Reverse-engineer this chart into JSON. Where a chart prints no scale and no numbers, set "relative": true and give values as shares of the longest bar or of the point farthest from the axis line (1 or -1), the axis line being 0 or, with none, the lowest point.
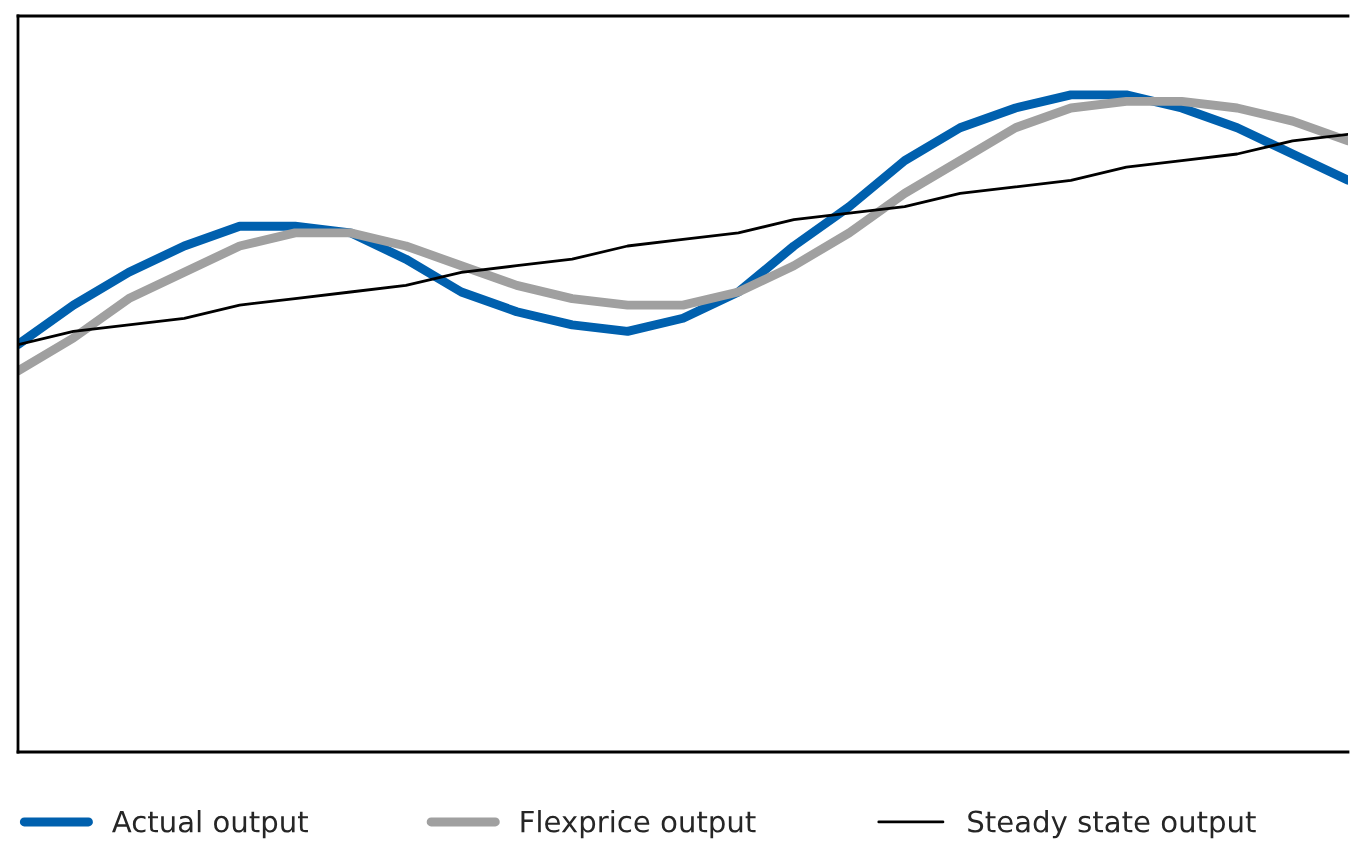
{
  "chart_data": {
    "type": "line",
    "relative": true,
    "legend": "bottom",
    "categories": [
      null,
      null,
      null,
      null,
      null,
      null,
      null,
      null,
      null,
      null,
      null,
      null,
      null,
      null,
      null,
      null,
      null,
      null,
      null,
      null,
      null,
      null,
      null,
      null,
      null
    ],
    "series": [
      {
        "name": "Actual output",
        "color": "#0060ae",
        "values": [
          0.62,
          0.68,
          0.73,
          0.77,
          0.8,
          0.8,
          0.79,
          0.75,
          0.7,
          0.67,
          0.65,
          0.64,
          0.66,
          0.7,
          0.77,
          0.83,
          0.9,
          0.95,
          0.98,
          1.0,
          1.0,
          0.98,
          0.95,
          0.91,
          0.87
        ]
      },
      {
        "name": "Flexprice output",
        "color": "#a0a0a0",
        "values": [
          0.58,
          0.63,
          0.69,
          0.73,
          0.77,
          0.79,
          0.79,
          0.77,
          0.74,
          0.71,
          0.69,
          0.68,
          0.68,
          0.7,
          0.74,
          0.79,
          0.85,
          0.9,
          0.95,
          0.98,
          0.99,
          0.99,
          0.98,
          0.96,
          0.93
        ]
      },
      {
        "name": "Steady state output",
        "color": "#000000",
        "values": [
          0.62,
          0.64,
          0.65,
          0.66,
          0.68,
          0.69,
          0.7,
          0.71,
          0.73,
          0.74,
          0.75,
          0.77,
          0.78,
          0.79,
          0.81,
          0.82,
          0.83,
          0.85,
          0.86,
          0.87,
          0.89,
          0.9,
          0.91,
          0.93,
          0.94
        ]
      }
    ]
  }
}
